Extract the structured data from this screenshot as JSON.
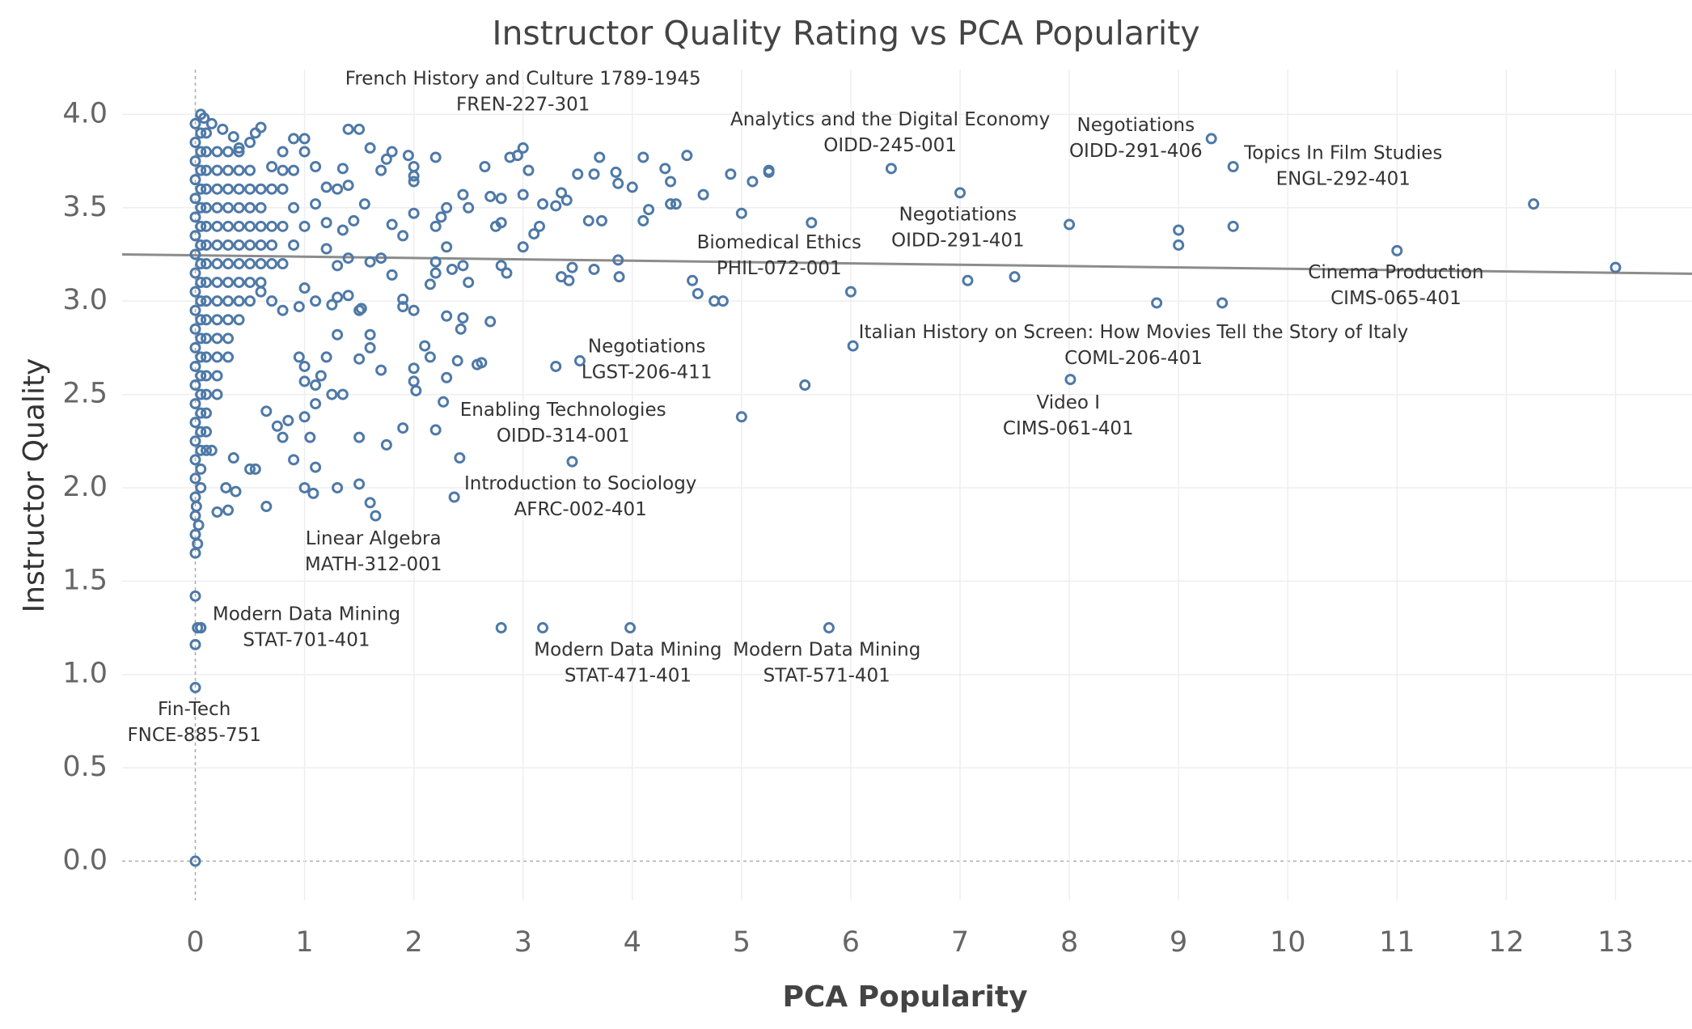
{
  "chart_data": {
    "type": "scatter",
    "title": "Instructor Quality Rating vs PCA Popularity",
    "x_label": "PCA Popularity",
    "y_label": "Instructor Quality",
    "color": "#4e79a7",
    "grid": true,
    "xlim": [
      -0.67,
      13.7
    ],
    "ylim": [
      -0.21,
      4.24
    ],
    "xticks": [
      0,
      1,
      2,
      3,
      4,
      5,
      6,
      7,
      8,
      9,
      10,
      11,
      12,
      13
    ],
    "yticks": [
      {
        "value": 0,
        "label": "0.0"
      },
      0.5,
      {
        "value": 1,
        "label": "1.0"
      },
      1.5,
      {
        "value": 2,
        "label": "2.0"
      },
      2.5,
      {
        "value": 3,
        "label": "3.0"
      },
      3.5,
      {
        "value": 4,
        "label": "4.0"
      }
    ],
    "trend": {
      "intercept": 3.245,
      "slope": -0.0072,
      "color": "#8c8c8c"
    },
    "x": [
      12.25,
      13.0,
      9.0,
      9.0,
      9.5,
      8.0,
      8.8,
      9.4,
      7.5,
      7.07,
      6.0,
      5.58,
      5.0,
      5.0,
      5.25,
      5.25,
      5.1,
      4.9,
      4.5,
      4.65,
      4.55,
      4.6,
      4.75,
      4.83,
      4.35,
      4.3,
      4.35,
      4.4,
      4.15,
      4.1,
      4.1,
      4.0,
      3.85,
      3.87,
      3.7,
      3.65,
      3.72,
      3.6,
      3.5,
      3.4,
      3.3,
      3.35,
      3.18,
      3.15,
      3.1,
      3.05,
      2.95,
      2.88,
      3.0,
      2.8,
      2.8,
      2.75,
      2.65,
      2.7,
      2.8,
      2.85,
      3.0,
      3.45,
      3.42,
      3.35,
      3.65,
      3.87,
      3.88,
      3.3,
      3.45,
      2.8,
      3.18,
      2.45,
      2.43,
      2.7,
      2.3,
      2.58,
      2.62,
      2.4,
      2.1,
      2.15,
      2.0,
      2.0,
      2.02,
      2.2,
      1.9,
      1.75,
      2.3,
      2.42,
      2.45,
      2.5,
      2.3,
      2.25,
      2.2,
      2.2,
      2.0,
      2.0,
      2.0,
      1.95,
      1.8,
      1.75,
      1.7,
      1.6,
      1.5,
      1.4,
      1.55,
      1.8,
      1.9,
      2.0,
      2.35,
      2.45,
      2.5,
      2.2,
      2.2,
      2.15,
      2.3,
      1.9,
      1.9,
      2.0,
      1.8,
      1.7,
      1.6,
      1.5,
      1.52,
      1.6,
      1.7,
      1.6,
      1.5,
      1.35,
      1.25,
      1.5,
      1.5,
      1.6,
      1.3,
      1.1,
      1.05,
      0.9,
      1.0,
      1.08,
      0.65,
      0.3,
      0.2,
      0.5,
      0.55,
      0.35,
      0.28,
      0.37,
      0.15,
      0.8,
      0.75,
      0.65,
      0.85,
      1.0,
      1.1,
      1.0,
      1.1,
      1.15,
      1.0,
      0.95,
      1.2,
      1.3,
      1.25,
      1.4,
      1.3,
      1.1,
      1.0,
      0.95,
      0.8,
      0.7,
      0.6,
      1.4,
      1.3,
      1.2,
      1.35,
      1.45,
      1.2,
      1.0,
      1.1,
      1.3,
      1.4,
      1.35,
      1.2,
      1.1,
      1.0,
      1.0,
      0.9,
      0.8,
      0.7,
      0.6,
      0.55,
      0.5,
      0.4,
      0.35,
      0.25,
      0.15,
      0.05,
      0.08,
      0,
      0,
      0.02,
      0.05,
      0,
      0.02,
      0,
      0,
      0.03,
      0,
      0.01,
      0,
      0,
      0,
      0,
      0,
      0,
      0,
      0,
      0,
      0,
      0,
      0,
      0,
      0,
      0,
      0,
      0,
      0,
      0,
      0,
      0,
      0.05,
      0.05,
      0.05,
      0.05,
      0.05,
      0.05,
      0.05,
      0.05,
      0.05,
      0.05,
      0.05,
      0.05,
      0.05,
      0.05,
      0.05,
      0.05,
      0.05,
      0.05,
      0.05,
      0.05,
      0.1,
      0.1,
      0.1,
      0.1,
      0.1,
      0.1,
      0.1,
      0.1,
      0.1,
      0.1,
      0.1,
      0.1,
      0.1,
      0.1,
      0.1,
      0.1,
      0.1,
      0.1,
      0.2,
      0.2,
      0.2,
      0.2,
      0.2,
      0.2,
      0.2,
      0.2,
      0.2,
      0.2,
      0.2,
      0.2,
      0.2,
      0.2,
      0.3,
      0.3,
      0.3,
      0.3,
      0.3,
      0.3,
      0.3,
      0.3,
      0.3,
      0.3,
      0.3,
      0.3,
      0.4,
      0.4,
      0.4,
      0.4,
      0.4,
      0.4,
      0.4,
      0.4,
      0.4,
      0.4,
      0.5,
      0.5,
      0.5,
      0.5,
      0.5,
      0.5,
      0.5,
      0.5,
      0.6,
      0.6,
      0.6,
      0.6,
      0.6,
      0.6,
      0.7,
      0.7,
      0.7,
      0.7,
      0.8,
      0.8,
      0.8,
      0.8,
      0.9,
      0.9,
      0.9
    ],
    "y": [
      3.52,
      3.18,
      3.38,
      3.3,
      3.4,
      3.41,
      2.99,
      2.99,
      3.13,
      3.11,
      3.05,
      2.55,
      2.38,
      3.47,
      3.69,
      3.7,
      3.64,
      3.68,
      3.78,
      3.57,
      3.11,
      3.04,
      3.0,
      3.0,
      3.64,
      3.71,
      3.52,
      3.52,
      3.49,
      3.43,
      3.77,
      3.61,
      3.69,
      3.63,
      3.77,
      3.68,
      3.43,
      3.43,
      3.68,
      3.54,
      3.51,
      3.58,
      3.52,
      3.4,
      3.36,
      3.7,
      3.78,
      3.77,
      3.57,
      3.55,
      3.42,
      3.4,
      3.72,
      3.56,
      3.19,
      3.15,
      3.29,
      3.18,
      3.11,
      3.13,
      3.17,
      3.22,
      3.13,
      2.65,
      2.14,
      1.25,
      1.25,
      2.91,
      2.85,
      2.89,
      2.92,
      2.66,
      2.67,
      2.68,
      2.76,
      2.7,
      2.64,
      2.57,
      2.52,
      2.31,
      2.32,
      2.23,
      2.59,
      2.16,
      3.57,
      3.5,
      3.5,
      3.45,
      3.4,
      3.77,
      3.72,
      3.67,
      3.64,
      3.78,
      3.8,
      3.76,
      3.7,
      3.82,
      3.92,
      3.92,
      3.52,
      3.41,
      3.35,
      3.47,
      3.17,
      3.19,
      3.1,
      3.15,
      3.21,
      3.09,
      3.29,
      3.01,
      2.97,
      2.95,
      3.14,
      3.23,
      3.21,
      2.95,
      2.96,
      2.82,
      2.63,
      2.75,
      2.69,
      2.5,
      2.5,
      2.27,
      2.02,
      1.92,
      2.0,
      2.11,
      2.27,
      2.15,
      2.0,
      1.97,
      1.9,
      1.88,
      1.87,
      2.1,
      2.1,
      2.16,
      2.0,
      1.98,
      2.2,
      2.27,
      2.33,
      2.41,
      2.36,
      2.38,
      2.45,
      2.57,
      2.55,
      2.6,
      2.65,
      2.7,
      2.7,
      2.82,
      2.98,
      3.03,
      3.02,
      3.0,
      3.07,
      2.97,
      2.95,
      3.0,
      3.05,
      3.23,
      3.19,
      3.28,
      3.38,
      3.43,
      3.42,
      3.4,
      3.52,
      3.6,
      3.62,
      3.71,
      3.61,
      3.72,
      3.8,
      3.87,
      3.87,
      3.8,
      3.72,
      3.93,
      3.9,
      3.85,
      3.82,
      3.88,
      3.92,
      3.95,
      4.0,
      3.98,
      1.42,
      1.16,
      1.25,
      1.25,
      0,
      1.7,
      1.65,
      1.75,
      1.8,
      1.85,
      1.9,
      1.95,
      2.05,
      2.15,
      2.25,
      2.35,
      2.45,
      2.55,
      2.65,
      2.75,
      2.85,
      2.95,
      3.05,
      3.15,
      3.25,
      3.35,
      3.45,
      3.55,
      3.65,
      3.75,
      3.85,
      3.95,
      2.0,
      2.1,
      2.2,
      2.3,
      2.4,
      2.5,
      2.6,
      2.7,
      2.8,
      2.9,
      3.0,
      3.1,
      3.2,
      3.3,
      3.4,
      3.5,
      3.6,
      3.7,
      3.8,
      3.9,
      2.2,
      2.3,
      2.4,
      2.5,
      2.6,
      2.7,
      2.8,
      2.9,
      3.0,
      3.1,
      3.2,
      3.3,
      3.4,
      3.5,
      3.6,
      3.7,
      3.8,
      3.9,
      2.5,
      2.6,
      2.7,
      2.8,
      2.9,
      3.0,
      3.1,
      3.2,
      3.3,
      3.4,
      3.5,
      3.6,
      3.7,
      3.8,
      2.7,
      2.8,
      2.9,
      3.0,
      3.1,
      3.2,
      3.3,
      3.4,
      3.5,
      3.6,
      3.7,
      3.8,
      2.9,
      3.0,
      3.1,
      3.2,
      3.3,
      3.4,
      3.5,
      3.6,
      3.7,
      3.8,
      3.0,
      3.1,
      3.2,
      3.3,
      3.4,
      3.5,
      3.6,
      3.7,
      3.1,
      3.2,
      3.3,
      3.4,
      3.5,
      3.6,
      3.2,
      3.3,
      3.4,
      3.6,
      3.2,
      3.4,
      3.6,
      3.7,
      3.3,
      3.5,
      3.7
    ],
    "labeled_points": [
      {
        "x": 3.0,
        "y": 3.82,
        "name": "French History and Culture 1789-1945",
        "code": "FREN-227-301"
      },
      {
        "x": 6.37,
        "y": 3.71,
        "name": "Analytics and the Digital Economy",
        "code": "OIDD-245-001"
      },
      {
        "x": 9.3,
        "y": 3.87,
        "name": "Negotiations",
        "code": "OIDD-291-406"
      },
      {
        "x": 9.5,
        "y": 3.72,
        "name": "Topics In Film Studies",
        "code": "ENGL-292-401"
      },
      {
        "x": 7.0,
        "y": 3.58,
        "name": "Negotiations",
        "code": "OIDD-291-401"
      },
      {
        "x": 5.64,
        "y": 3.42,
        "name": "Biomedical Ethics",
        "code": "PHIL-072-001"
      },
      {
        "x": 11.0,
        "y": 3.27,
        "name": "Cinema Production",
        "code": "CIMS-065-401"
      },
      {
        "x": 6.02,
        "y": 2.76,
        "name": "Italian History on Screen: How Movies Tell the Story of Italy",
        "code": "COML-206-401"
      },
      {
        "x": 8.01,
        "y": 2.58,
        "name": "Video I",
        "code": "CIMS-061-401"
      },
      {
        "x": 3.52,
        "y": 2.68,
        "name": "Negotiations",
        "code": "LGST-206-411"
      },
      {
        "x": 2.27,
        "y": 2.46,
        "name": "Enabling Technologies",
        "code": "OIDD-314-001"
      },
      {
        "x": 2.37,
        "y": 1.95,
        "name": "Introduction to Sociology",
        "code": "AFRC-002-401"
      },
      {
        "x": 1.65,
        "y": 1.85,
        "name": "Linear Algebra",
        "code": "MATH-312-001"
      },
      {
        "x": 0.05,
        "y": 1.25,
        "name": "Modern Data Mining",
        "code": "STAT-701-401"
      },
      {
        "x": 3.98,
        "y": 1.25,
        "name": "Modern Data Mining",
        "code": "STAT-471-401"
      },
      {
        "x": 5.8,
        "y": 1.25,
        "name": "Modern Data Mining",
        "code": "STAT-571-401"
      },
      {
        "x": 0,
        "y": 0.93,
        "name": "Fin-Tech",
        "code": "FNCE-885-751"
      }
    ]
  }
}
